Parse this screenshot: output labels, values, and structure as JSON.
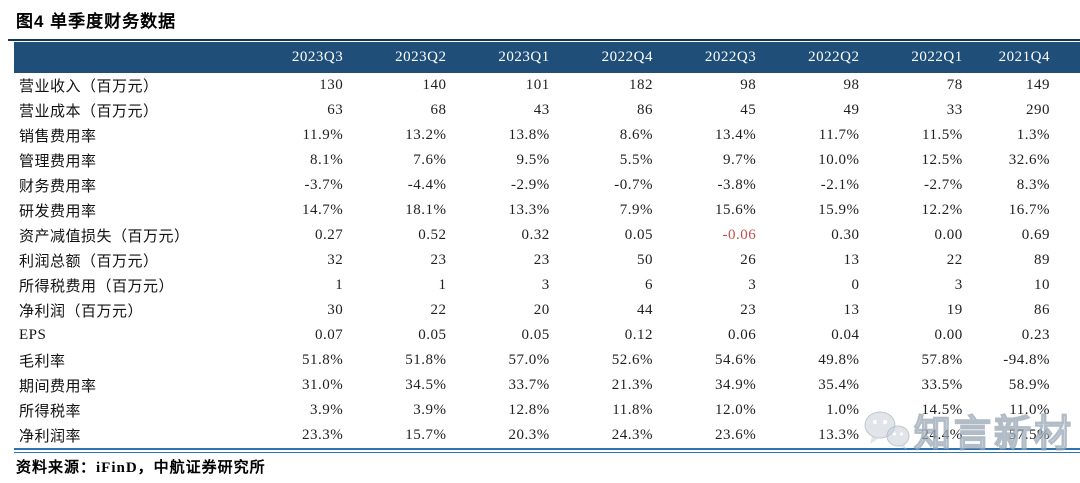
{
  "title": "图4 单季度财务数据",
  "table": {
    "columns": [
      "2023Q3",
      "2023Q2",
      "2023Q1",
      "2022Q4",
      "2022Q3",
      "2022Q2",
      "2022Q1",
      "2021Q4"
    ],
    "rows": [
      {
        "label": "营业收入（百万元）",
        "values": [
          "130",
          "140",
          "101",
          "182",
          "98",
          "98",
          "78",
          "149"
        ]
      },
      {
        "label": "营业成本（百万元）",
        "values": [
          "63",
          "68",
          "43",
          "86",
          "45",
          "49",
          "33",
          "290"
        ]
      },
      {
        "label": "销售费用率",
        "values": [
          "11.9%",
          "13.2%",
          "13.8%",
          "8.6%",
          "13.4%",
          "11.7%",
          "11.5%",
          "1.3%"
        ]
      },
      {
        "label": "管理费用率",
        "values": [
          "8.1%",
          "7.6%",
          "9.5%",
          "5.5%",
          "9.7%",
          "10.0%",
          "12.5%",
          "32.6%"
        ]
      },
      {
        "label": "财务费用率",
        "values": [
          "-3.7%",
          "-4.4%",
          "-2.9%",
          "-0.7%",
          "-3.8%",
          "-2.1%",
          "-2.7%",
          "8.3%"
        ]
      },
      {
        "label": "研发费用率",
        "values": [
          "14.7%",
          "18.1%",
          "13.3%",
          "7.9%",
          "15.6%",
          "15.9%",
          "12.2%",
          "16.7%"
        ]
      },
      {
        "label": "资产减值损失（百万元）",
        "values": [
          "0.27",
          "0.52",
          "0.32",
          "0.05",
          "-0.06",
          "0.30",
          "0.00",
          "0.69"
        ]
      },
      {
        "label": "利润总额（百万元）",
        "values": [
          "32",
          "23",
          "23",
          "50",
          "26",
          "13",
          "22",
          "89"
        ]
      },
      {
        "label": "所得税费用（百万元）",
        "values": [
          "1",
          "1",
          "3",
          "6",
          "3",
          "0",
          "3",
          "10"
        ]
      },
      {
        "label": "净利润（百万元）",
        "values": [
          "30",
          "22",
          "20",
          "44",
          "23",
          "13",
          "19",
          "86"
        ]
      },
      {
        "label": "EPS",
        "values": [
          "0.07",
          "0.05",
          "0.05",
          "0.12",
          "0.06",
          "0.04",
          "0.00",
          "0.23"
        ]
      },
      {
        "label": "毛利率",
        "values": [
          "51.8%",
          "51.8%",
          "57.0%",
          "52.6%",
          "54.6%",
          "49.8%",
          "57.8%",
          "-94.8%"
        ]
      },
      {
        "label": "期间费用率",
        "values": [
          "31.0%",
          "34.5%",
          "33.7%",
          "21.3%",
          "34.9%",
          "35.4%",
          "33.5%",
          "58.9%"
        ]
      },
      {
        "label": "所得税率",
        "values": [
          "3.9%",
          "3.9%",
          "12.8%",
          "11.8%",
          "12.0%",
          "1.0%",
          "14.5%",
          "11.0%"
        ]
      },
      {
        "label": "净利润率",
        "values": [
          "23.3%",
          "15.7%",
          "20.3%",
          "24.3%",
          "23.6%",
          "13.3%",
          "24.4%",
          "57.5%"
        ]
      }
    ],
    "highlight_cell": {
      "row": 6,
      "col": 4
    }
  },
  "source": "资料来源：iFinD，中航证券研究所",
  "watermark": {
    "text": "知言新材",
    "icon": "wechat-icon"
  },
  "colors": {
    "header_bg": "#1f4e79",
    "header_text": "#ffffff",
    "top_rule": "#17365d",
    "bottom_double_line": "#2e74b5",
    "body_text": "#1f1f1f",
    "negative_red": "#c0504d"
  }
}
